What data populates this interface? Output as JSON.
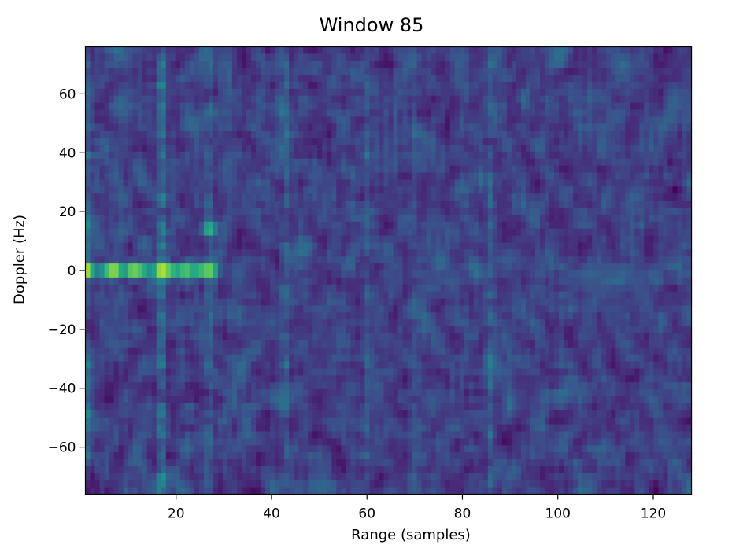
{
  "chart_data": {
    "type": "heatmap",
    "title": "Window 85",
    "xlabel": "Range (samples)",
    "ylabel": "Doppler (Hz)",
    "xlim": [
      1,
      128
    ],
    "ylim": [
      -76,
      76
    ],
    "x_ticks": [
      20,
      40,
      60,
      80,
      100,
      120
    ],
    "y_ticks": [
      -60,
      -40,
      -20,
      0,
      20,
      40,
      60
    ],
    "colormap": "viridis",
    "grid": false,
    "range_bins": 128,
    "doppler_bins": 64,
    "peaks": [
      {
        "range": 1,
        "doppler": 0,
        "level": 0.98
      },
      {
        "range": 7,
        "doppler": 0,
        "level": 0.88
      },
      {
        "range": 11,
        "doppler": 0,
        "level": 0.85
      },
      {
        "range": 17,
        "doppler": 0,
        "level": 1.0
      },
      {
        "range": 22,
        "doppler": 0,
        "level": 0.8
      },
      {
        "range": 27,
        "doppler": 0,
        "level": 0.84
      },
      {
        "range": 27,
        "doppler": 14,
        "level": 0.72
      }
    ],
    "range_stripes": [
      {
        "range": 1,
        "level": 0.45
      },
      {
        "range": 17,
        "level": 0.55
      },
      {
        "range": 27,
        "level": 0.38
      },
      {
        "range": 43,
        "level": 0.4
      },
      {
        "range": 60,
        "level": 0.36
      },
      {
        "range": 70,
        "level": 0.34
      },
      {
        "range": 86,
        "level": 0.42
      },
      {
        "range": 101,
        "level": 0.3
      },
      {
        "range": 113,
        "level": 0.28
      }
    ],
    "doppler_zero_row_range": [
      1,
      29
    ]
  }
}
